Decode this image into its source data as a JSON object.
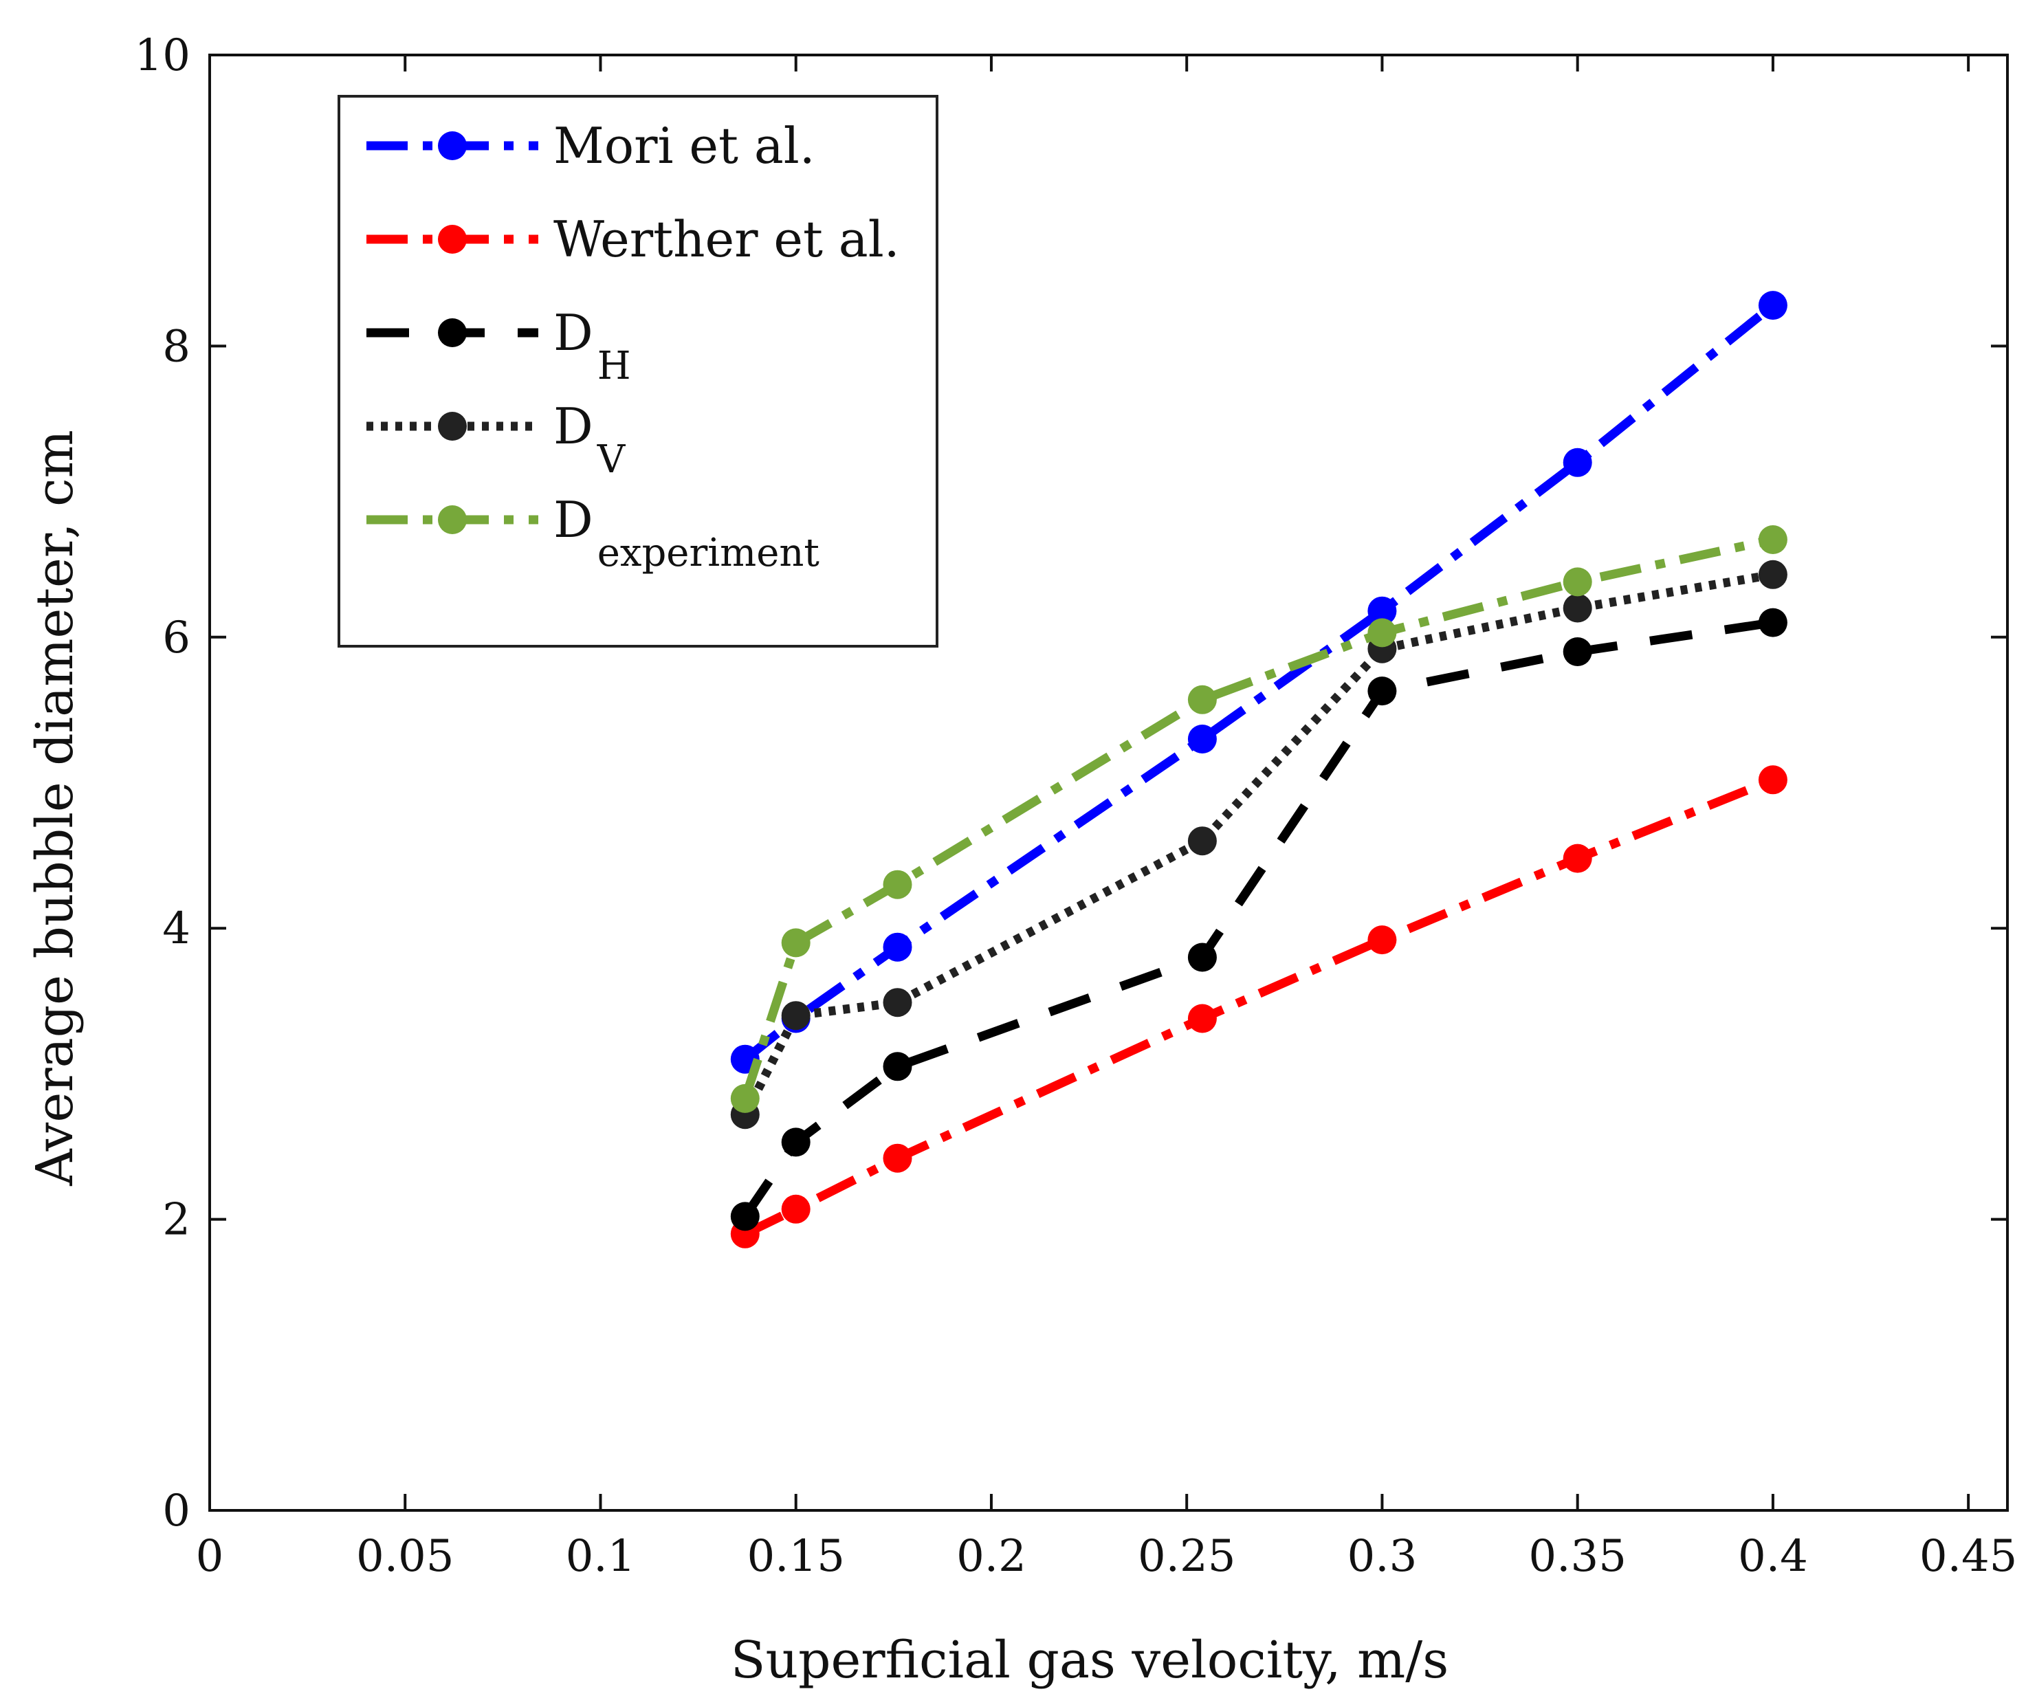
{
  "chart_data": {
    "type": "line",
    "title": "",
    "xlabel": "Superficial gas velocity, m/s",
    "ylabel": "Average bubble diameter, cm",
    "xlim": [
      0,
      0.46
    ],
    "ylim": [
      0,
      10
    ],
    "xticks": [
      0,
      0.05,
      0.1,
      0.15,
      0.2,
      0.25,
      0.3,
      0.35,
      0.4,
      0.45
    ],
    "xtick_labels": [
      "0",
      "0.05",
      "0.1",
      "0.15",
      "0.2",
      "0.25",
      "0.3",
      "0.35",
      "0.4",
      "0.45"
    ],
    "yticks": [
      0,
      2,
      4,
      6,
      8,
      10
    ],
    "ytick_labels": [
      "0",
      "2",
      "4",
      "6",
      "8",
      "10"
    ],
    "grid": false,
    "legend_position": "top-left",
    "series": [
      {
        "name": "Mori et al.",
        "label_main": "Mori et al.",
        "label_sub": "",
        "color": "#0000ff",
        "line_style": "dashdot",
        "x": [
          0.137,
          0.15,
          0.176,
          0.254,
          0.3,
          0.35,
          0.4
        ],
        "y": [
          3.1,
          3.38,
          3.87,
          5.3,
          6.18,
          7.2,
          8.28
        ]
      },
      {
        "name": "Werther et al.",
        "label_main": "Werther et al.",
        "label_sub": "",
        "color": "#ff0000",
        "line_style": "dashdot",
        "x": [
          0.137,
          0.15,
          0.176,
          0.254,
          0.3,
          0.35,
          0.4
        ],
        "y": [
          1.9,
          2.07,
          2.42,
          3.38,
          3.92,
          4.48,
          5.02
        ]
      },
      {
        "name": "D_H",
        "label_main": "D",
        "label_sub": "H",
        "color": "#000000",
        "line_style": "dashed",
        "x": [
          0.137,
          0.15,
          0.176,
          0.254,
          0.3,
          0.35,
          0.4
        ],
        "y": [
          2.02,
          2.53,
          3.05,
          3.8,
          5.63,
          5.9,
          6.1
        ]
      },
      {
        "name": "D_V",
        "label_main": "D",
        "label_sub": "V",
        "color": "#222222",
        "line_style": "dotted",
        "x": [
          0.137,
          0.15,
          0.176,
          0.254,
          0.3,
          0.35,
          0.4
        ],
        "y": [
          2.72,
          3.4,
          3.49,
          4.6,
          5.92,
          6.2,
          6.43
        ]
      },
      {
        "name": "D_experiment",
        "label_main": "D",
        "label_sub": "experiment",
        "color": "#77a83a",
        "line_style": "dashdot",
        "x": [
          0.137,
          0.15,
          0.176,
          0.254,
          0.3,
          0.35,
          0.4
        ],
        "y": [
          2.83,
          3.9,
          4.3,
          5.57,
          6.03,
          6.38,
          6.67
        ]
      }
    ]
  }
}
